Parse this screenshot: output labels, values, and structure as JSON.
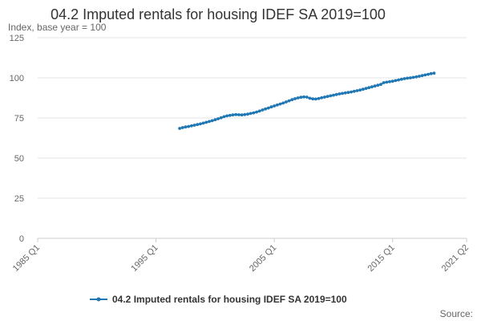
{
  "chart_data": {
    "type": "line",
    "title": "04.2 Imputed rentals for housing IDEF SA 2019=100",
    "subtitle": "Index, base year = 100",
    "xlabel": "",
    "ylabel": "Index, base year = 100",
    "y_ticks": [
      0,
      25,
      50,
      75,
      100,
      125
    ],
    "ylim": [
      0,
      125
    ],
    "x_ticks": [
      "1985 Q1",
      "1995 Q1",
      "2005 Q1",
      "2015 Q1",
      "2021 Q2"
    ],
    "x_range": [
      "1985 Q1",
      "2021 Q2"
    ],
    "grid": true,
    "legend_position": "bottom",
    "source_label": "Source:",
    "series": [
      {
        "name": "04.2 Imputed rentals for housing IDEF SA 2019=100",
        "color": "#1f77b4",
        "start": "1997 Q1",
        "frequency": "quarterly",
        "values": [
          68.5,
          69.0,
          69.4,
          69.7,
          70.1,
          70.5,
          70.9,
          71.3,
          71.8,
          72.3,
          72.8,
          73.3,
          73.9,
          74.5,
          75.1,
          75.8,
          76.3,
          76.6,
          76.9,
          77.1,
          77.0,
          76.9,
          77.1,
          77.4,
          77.8,
          78.2,
          78.7,
          79.3,
          80.0,
          80.6,
          81.2,
          81.9,
          82.5,
          83.1,
          83.7,
          84.3,
          85.0,
          85.7,
          86.4,
          87.0,
          87.5,
          87.9,
          88.1,
          88.0,
          87.3,
          86.9,
          86.8,
          87.1,
          87.6,
          88.0,
          88.4,
          88.8,
          89.2,
          89.6,
          90.0,
          90.3,
          90.6,
          90.9,
          91.2,
          91.6,
          92.0,
          92.4,
          92.9,
          93.4,
          93.9,
          94.4,
          94.9,
          95.4,
          95.9,
          97.0,
          97.3,
          97.6,
          97.9,
          98.3,
          98.7,
          99.1,
          99.5,
          99.8,
          100.0,
          100.3,
          100.6,
          101.0,
          101.4,
          101.8,
          102.2,
          102.6,
          102.9
        ]
      }
    ]
  }
}
